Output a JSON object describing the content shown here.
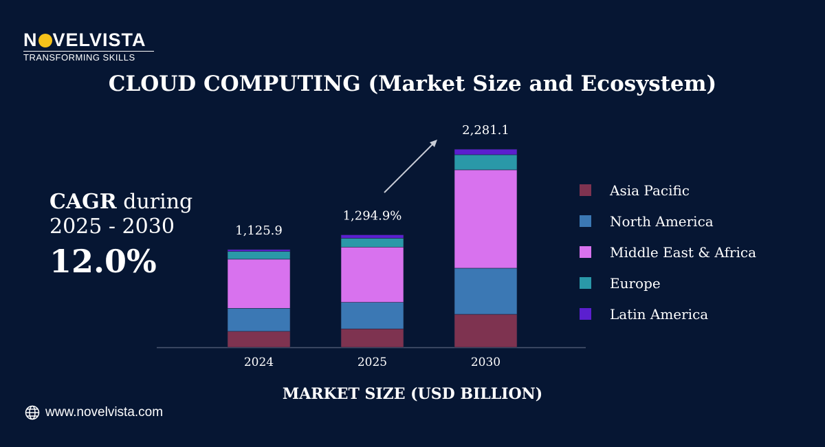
{
  "logo": {
    "brand_pre": "N",
    "brand_post": "VELVISTA",
    "tagline": "TRANSFORMING SKILLS"
  },
  "title": "CLOUD COMPUTING (Market Size and Ecosystem)",
  "cagr": {
    "label_bold": "CAGR",
    "label_rest": " during",
    "period": "2025 - 2030",
    "value": "12.0%"
  },
  "footer": {
    "website": "www.novelvista.com"
  },
  "chart_data": {
    "type": "bar",
    "stacked": true,
    "categories": [
      "2024",
      "2025",
      "2030"
    ],
    "totals_labels": [
      "1,125.9",
      "1,294.9%",
      "2,281.1"
    ],
    "totals": [
      1125.9,
      1294.9,
      2281.1
    ],
    "series": [
      {
        "name": "Asia Pacific",
        "color": "#7e3350",
        "values": [
          184,
          212,
          380
        ]
      },
      {
        "name": "North America",
        "color": "#3b78b4",
        "values": [
          265,
          306,
          531
        ]
      },
      {
        "name": "Middle East & Africa",
        "color": "#d872ee",
        "values": [
          566,
          636,
          1133
        ]
      },
      {
        "name": "Europe",
        "color": "#2a98a8",
        "values": [
          89,
          102,
          174
        ]
      },
      {
        "name": "Latin America",
        "color": "#5b1fcf",
        "values": [
          22,
          39,
          63
        ]
      }
    ],
    "xlabel": "MARKET SIZE (USD BILLION)",
    "ylabel": "",
    "ylim": [
      0,
      2300
    ],
    "grid": false,
    "legend": "right"
  }
}
